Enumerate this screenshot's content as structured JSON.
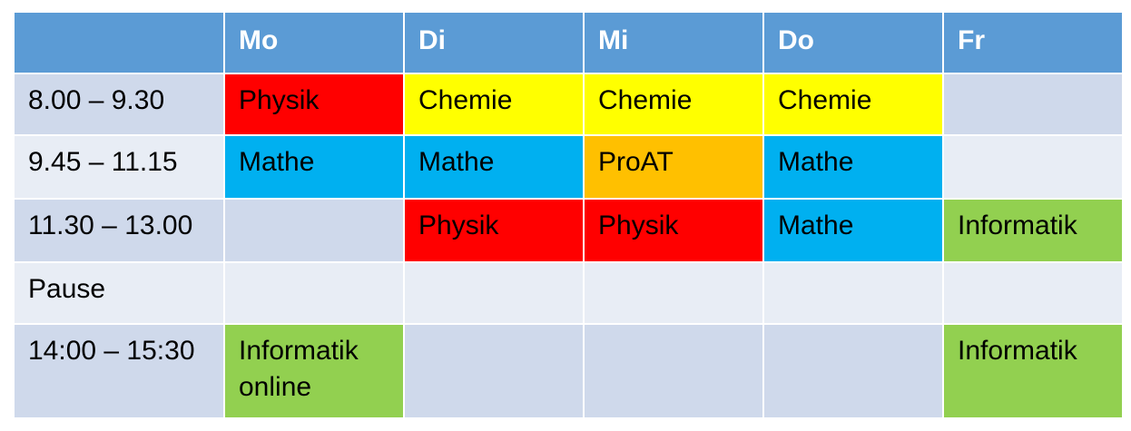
{
  "header": {
    "corner": "",
    "days": [
      "Mo",
      "Di",
      "Mi",
      "Do",
      "Fr"
    ]
  },
  "subject_colors": {
    "Physik": "#ff0000",
    "Chemie": "#ffff00",
    "Mathe": "#00b0f0",
    "ProAT": "#ffc000",
    "Informatik": "#92d050"
  },
  "rows": [
    {
      "time": "8.00 – 9.30",
      "cells": [
        "Physik",
        "Chemie",
        "Chemie",
        "Chemie",
        ""
      ]
    },
    {
      "time": "9.45 – 11.15",
      "cells": [
        "Mathe",
        "Mathe",
        "ProAT",
        "Mathe",
        ""
      ]
    },
    {
      "time": "11.30 – 13.00",
      "cells": [
        "",
        "Physik",
        "Physik",
        "Mathe",
        "Informatik"
      ]
    },
    {
      "time": "Pause",
      "cells": [
        "",
        "",
        "",
        "",
        ""
      ]
    },
    {
      "time": "14:00 – 15:30",
      "cells": [
        "Informatik online",
        "",
        "",
        "",
        "Informatik"
      ]
    }
  ]
}
